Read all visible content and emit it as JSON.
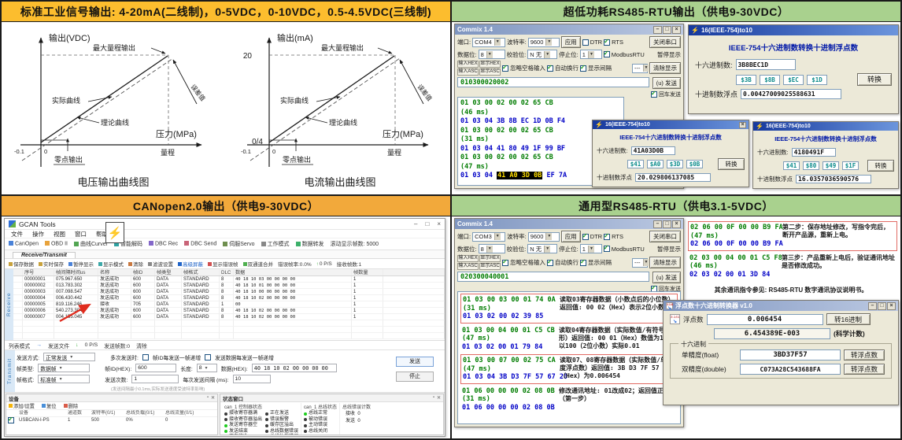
{
  "icons": {
    "lightning": "⚡",
    "minimize": "–",
    "maximize": "□",
    "close": "×",
    "close_small": "✕",
    "pin": "▪",
    "arrow_right": "→",
    "arrow_down": "↓"
  },
  "panels": {
    "signal": {
      "header": "标准工业信号输出: 4-20mA(二线制)，0-5VDC，0-10VDC，0.5-4.5VDC(三线制)",
      "diagrams": [
        {
          "y_axis": "输出(VDC)",
          "x_axis": "压力(MPa)",
          "max_label": "最大量程输出",
          "actual_label": "实际曲线",
          "theory_label": "理论曲线",
          "zero_label": "零点输出",
          "range_label": "量程",
          "error_label": "误差值",
          "tick_neg": "-0.1",
          "tick_zero": "0",
          "caption": "电压输出曲线图"
        },
        {
          "y_axis": "输出(mA)",
          "x_axis": "压力(MPa)",
          "max_label": "最大量程输出",
          "actual_label": "实际曲线",
          "theory_label": "理论曲线",
          "zero_label": "零点输出",
          "range_label": "量程",
          "error_label": "误差值",
          "tick_neg": "-0.1",
          "tick_zero": "0",
          "tick_top": "20",
          "tick_origin": "0/4",
          "caption": "电流输出曲线图"
        }
      ]
    },
    "rs485_low_power": {
      "header": "超低功耗RS485-RTU输出（供电9-30VDC）",
      "commix": {
        "title": "Commix 1.4",
        "port_label": "端口:",
        "port": "COM4",
        "baud_label": "波特率:",
        "baud": "9600",
        "apply": "应用",
        "dtr": "DTR",
        "rts": "RTS",
        "close_port": "关闭串口",
        "databits_label": "数据位:",
        "databits": "8",
        "parity_label": "校验位:",
        "parity": "N 无",
        "stop_label": "停止位:",
        "stopbits": "1",
        "modbus": "ModbusRTU",
        "pause": "暂停显示",
        "in_hex": "输入HEX",
        "show_hex": "显示HEX",
        "in_asc": "输入ASC",
        "show_asc": "显示ASC",
        "ignore_space": "忽略空格输入",
        "auto_wrap": "自动换行",
        "show_gap": "显示间隔",
        "mini_combo": "---",
        "clear": "清除显示",
        "input_value": "010300020002",
        "send": "(u) 发送",
        "enter_send": "回车发送",
        "dtr_on": false,
        "rts_on": true,
        "modbus_on": true,
        "ignore_on": true,
        "wrap_on": true,
        "gap_on": true,
        "enter_on": true,
        "log": [
          {
            "t": "tx",
            "text": "01 03 00 02 00 02 65 CB"
          },
          {
            "t": "time",
            "text": "(46 ms)"
          },
          {
            "t": "rx",
            "text": "01 03 04 3B 8B EC 1D 0B F4"
          },
          {
            "t": "tx",
            "text": "01 03 00 02 00 02 65 CB"
          },
          {
            "t": "time",
            "text": "(31 ms)"
          },
          {
            "t": "rx",
            "text": "01 03 04 41 80 49 1F 99 BF"
          },
          {
            "t": "tx",
            "text": "01 03 00 02 00 02 65 CB"
          },
          {
            "t": "time",
            "text": "(47 ms)"
          },
          {
            "t": "rx",
            "pre": "01 03 04 ",
            "hl": "41 A0 3D 0B",
            "post": " EF 7A"
          }
        ]
      },
      "converters": [
        {
          "title": "16(IEEE-754)to10",
          "heading": "IEEE-754十六进制数转换十进制浮点数",
          "hex_label": "十六进制数:",
          "hex": "3B8BEC1D",
          "bytes": [
            "$3B",
            "$8B",
            "$EC",
            "$1D"
          ],
          "convert": "转换",
          "dec_label": "十进制数浮点",
          "dec": "0.00427009025588631"
        },
        {
          "title": "16(IEEE-754)to10",
          "heading": "IEEE-754十六进制数转换十进制浮点数",
          "hex_label": "十六进制数:",
          "hex": "41A03D0B",
          "bytes": [
            "$41",
            "$A0",
            "$3D",
            "$0B"
          ],
          "convert": "转换",
          "dec_label": "十进制数浮点",
          "dec": "20.029806137085"
        },
        {
          "title": "16(IEEE-754)to10",
          "heading": "IEEE-754十六进制数转换十进制浮点数",
          "hex_label": "十六进制数:",
          "hex": "4180491F",
          "bytes": [
            "$41",
            "$80",
            "$49",
            "$1F"
          ],
          "convert": "转换",
          "dec_label": "十进制数浮点",
          "dec": "16.0357036590576"
        }
      ]
    },
    "canopen": {
      "header": "CANopen2.0输出（供电9-30VDC）",
      "gcan": {
        "title": "GCAN Tools",
        "menus": [
          "文件",
          "操作",
          "视图",
          "窗口",
          "帮助"
        ],
        "toolbar": [
          "CanOpen",
          "OBD II",
          "曲线Curver",
          "智能解码",
          "DBC Rec",
          "DBC Send",
          "伺服Servo",
          "工作模式",
          "数据转发",
          "滚动显示帧数: 5000"
        ],
        "tab": "Receive/Transmit",
        "subtoolbar": [
          "保存数据",
          "实时保存",
          "暂停显示",
          "显示模式",
          "清除",
          "滤波设置",
          "高级屏蔽",
          "显示错误帧",
          "双通道合并",
          "错误帧率:0.0%",
          "0 P/S",
          "接收帧数:1"
        ],
        "receive_tab": "Receive",
        "transmit_tab": "Transmit",
        "table": {
          "headers": [
            "序号",
            "帧间隔时间us",
            "名称",
            "帧ID",
            "帧类型",
            "帧格式",
            "DLC",
            "数据",
            "帧数量"
          ],
          "rows": [
            [
              "00000001",
              "075.967.650",
              "发送成功",
              "600",
              "DATA",
              "STANDARD",
              "8",
              "40 18 10 03 00 00 00 00",
              "1"
            ],
            [
              "00000002",
              "013.783.302",
              "发送成功",
              "600",
              "DATA",
              "STANDARD",
              "8",
              "40 18 10 01 00 00 00 00",
              "1"
            ],
            [
              "00000003",
              "007.098.547",
              "发送成功",
              "600",
              "DATA",
              "STANDARD",
              "8",
              "40 18 10 00 00 00 00 00",
              "1"
            ],
            [
              "00000004",
              "006.430.442",
              "发送成功",
              "600",
              "DATA",
              "STANDARD",
              "8",
              "40 18 10 02 00 00 00 00",
              "1"
            ],
            [
              "00000005",
              "819.116.246",
              "接收",
              "705",
              "DATA",
              "STANDARD",
              "1",
              "00",
              "1"
            ],
            [
              "00000006",
              "540.273.304",
              "发送成功",
              "600",
              "DATA",
              "STANDARD",
              "8",
              "40 18 10 02 00 00 00 00",
              "1"
            ],
            [
              "00000007",
              "004.155.045",
              "发送成功",
              "600",
              "DATA",
              "STANDARD",
              "8",
              "40 18 10 02 00 00 00 00",
              "1"
            ]
          ]
        },
        "transmit": {
          "list_mode": "列表模式",
          "send_file": "发送文件",
          "pps": "0 P/S",
          "sent_frames": "发送帧数:0",
          "clear": "清除",
          "send_mode_label": "发送方式:",
          "send_mode": "正常发送",
          "frame_type_label": "帧类型:",
          "frame_type": "数据帧",
          "frame_format_label": "帧格式:",
          "frame_format": "标准帧",
          "multi_label": "多次发送时:",
          "inc_id": "帧ID每发送一帧递增",
          "inc_data": "发送数据每发送一帧递增",
          "frame_id_label": "帧ID(HEX):",
          "frame_id": "600",
          "len_label": "长度:",
          "len": "8",
          "data_label": "数据(HEX):",
          "data": "40 18 10 02 00 00 00 00",
          "count_label": "发送次数:",
          "count": "1",
          "interval_label": "每次发送间隔 (ms):",
          "interval": "10",
          "hint": "(发送间隔最小0.1ms,实际发送速度受波特率影响)",
          "send": "发送",
          "stop": "停止"
        },
        "device": {
          "title": "设备",
          "toolbar": [
            "添加/设置",
            "复位",
            "删除"
          ],
          "headers": [
            "设备",
            "通道数",
            "波特率(0/1)",
            "总线负载(0/1)",
            "总线流量(0/1)"
          ],
          "row": [
            "USBCAN-I-PS",
            "1",
            "500",
            "0%",
            "0"
          ],
          "row_checked": true
        },
        "status": {
          "title": "状态窗口",
          "controller_title": "can_1 控制器状态",
          "controller_left": [
            {
              "label": "接收寄存器满",
              "on": false
            },
            {
              "label": "接收寄存器溢出",
              "on": false
            },
            {
              "label": "发送寄存器空",
              "on": true
            },
            {
              "label": "发送结束",
              "on": true
            },
            {
              "label": "正在接收",
              "on": false
            }
          ],
          "controller_right": [
            {
              "label": "正在发送",
              "on": false
            },
            {
              "label": "错误报警",
              "on": false
            },
            {
              "label": "缓存区溢出",
              "on": false
            },
            {
              "label": "总线数据错误",
              "on": false
            },
            {
              "label": "总线仲裁错误",
              "on": false
            }
          ],
          "bus_title": "can_1 总线状态",
          "bus": [
            {
              "label": "总线正常",
              "on": true
            },
            {
              "label": "被动错误",
              "on": false
            },
            {
              "label": "主动错误",
              "on": false
            },
            {
              "label": "总线关闭",
              "on": false
            }
          ],
          "count_title": "总线错误计数",
          "rx_label": "接收",
          "rx": "0",
          "tx_label": "发送",
          "tx": "0"
        }
      }
    },
    "rs485_general": {
      "header": "通用型RS485-RTU（供电3.1-5VDC）",
      "commix": {
        "title": "Commix 1.4",
        "port_label": "端口:",
        "port": "COM3",
        "baud_label": "波特率:",
        "baud": "9600",
        "apply": "应用",
        "dtr": "DTR",
        "rts": "RTS",
        "close_port": "关闭串口",
        "databits_label": "数据位:",
        "databits": "8",
        "parity_label": "校验位:",
        "parity": "N 无",
        "stop_label": "停止位:",
        "stopbits": "1",
        "modbus": "ModbusRTU",
        "pause": "暂停显示",
        "in_hex": "输入HEX",
        "show_hex": "显示HEX",
        "in_asc": "输入ASC",
        "show_asc": "显示ASC",
        "ignore_space": "忽略空格输入",
        "auto_wrap": "自动换行",
        "show_gap": "显示间隔",
        "mini_combo": "---",
        "clear": "清除显示",
        "input_value": "020300040001",
        "send": "(u) 发送",
        "enter_send": "回车发送",
        "dtr_on": true,
        "rts_on": true,
        "modbus_on": true,
        "ignore_on": true,
        "wrap_on": true,
        "gap_on": true,
        "enter_on": true
      },
      "blocks_left": [
        {
          "tx": "01 03 00 03 00 01 74 0A",
          "time": "(31 ms)",
          "rx": "01 03 02 00 02 39 85",
          "note": "读取03寄存器数据（小数点后的小位数）返回值: 00 02（Hex）表示2位小数",
          "boxed": true
        },
        {
          "tx": "01 03 00 04 00 01 C5 CB",
          "time": "(47 ms)",
          "rx": "01 03 02 00 01 79 84",
          "note": "读取04寄存器数据（实际数值/有符号整形）返回值: 00 01（Hex）数值为1，除以100（2位小数）实际0.01",
          "boxed": false
        },
        {
          "tx": "01 03 00 07 00 02 75 CA",
          "time": "(47 ms)",
          "rx": "01 03 04 3B D3 7F 57 67 20",
          "note": "读取07、08寄存器数据（实际数值/单精度浮点数）返回值: 3B D3 7F 57（Hex）为0.006454",
          "boxed": true
        },
        {
          "tx": "01 06 00 00 00 02 08 0B",
          "time": "(31 ms)",
          "rx": "01 06 00 00 00 02 08 0B",
          "note": "修改通讯地址: 01改成02；返回值正确（第一步）",
          "boxed": false
        }
      ],
      "blocks_right": [
        {
          "tx": "02 06 00 0F 00 00 B9 FA",
          "time": "(47 ms)",
          "rx": "02 06 00 0F 00 00 B9 FA",
          "note": "第二步：保存地址修改，写指令完后，断开产品源，重新上电。",
          "boxed": true
        },
        {
          "tx": "02 03 00 04 00 01 C5 F8",
          "time": "(46 ms)",
          "rx": "02 03 02 00 01 3D 84",
          "note": "第三步：产品重新上电后，验证通讯地址是否修改成功。",
          "boxed": false
        }
      ],
      "footer": "其余通讯指令参见: RS485-RTU 数字通讯协议说明书。",
      "float_converter": {
        "title": "浮点数十六进制转换器  v1.0",
        "float_label": "浮点数",
        "float_value": "0.006454",
        "to_hex": "转16进制",
        "sci_value": "6.454389E-003",
        "sci_label": "(科学计数)",
        "group": "十六进制",
        "single_label": "单精度(float)",
        "single_value": "3BD37F57",
        "double_label": "双精度(double)",
        "double_value": "C073A28C543688FA",
        "to_float": "转浮点数",
        "to_float2": "转浮点数"
      }
    }
  }
}
